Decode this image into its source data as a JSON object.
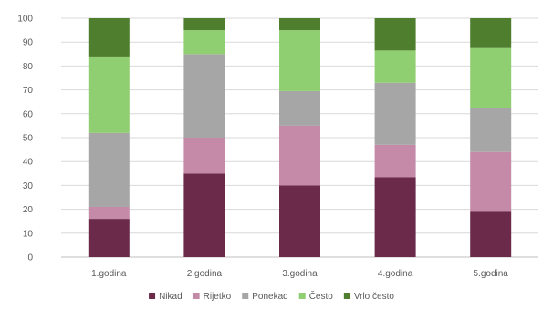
{
  "chart_data": {
    "type": "bar",
    "stacked": true,
    "stack_mode": "percent",
    "categories": [
      "1.godina",
      "2.godina",
      "3.godina",
      "4.godina",
      "5.godina"
    ],
    "series": [
      {
        "name": "Nikad",
        "color": "#6b2a4a",
        "values": [
          16,
          35,
          30,
          33.5,
          19
        ]
      },
      {
        "name": "Rijetko",
        "color": "#c48aa8",
        "values": [
          5,
          15,
          25,
          13.5,
          25
        ]
      },
      {
        "name": "Ponekad",
        "color": "#a6a6a6",
        "values": [
          31,
          35,
          14.5,
          26,
          18.5
        ]
      },
      {
        "name": "Često",
        "color": "#8fcf71",
        "values": [
          32,
          10,
          25.5,
          13.5,
          25
        ]
      },
      {
        "name": "Vrlo često",
        "color": "#4f7f2e",
        "values": [
          16,
          5,
          5,
          13.5,
          12.5
        ]
      }
    ],
    "y_ticks": [
      0,
      10,
      20,
      30,
      40,
      50,
      60,
      70,
      80,
      90,
      100
    ],
    "ylim": [
      0,
      100
    ],
    "grid": true,
    "legend_position": "bottom"
  }
}
